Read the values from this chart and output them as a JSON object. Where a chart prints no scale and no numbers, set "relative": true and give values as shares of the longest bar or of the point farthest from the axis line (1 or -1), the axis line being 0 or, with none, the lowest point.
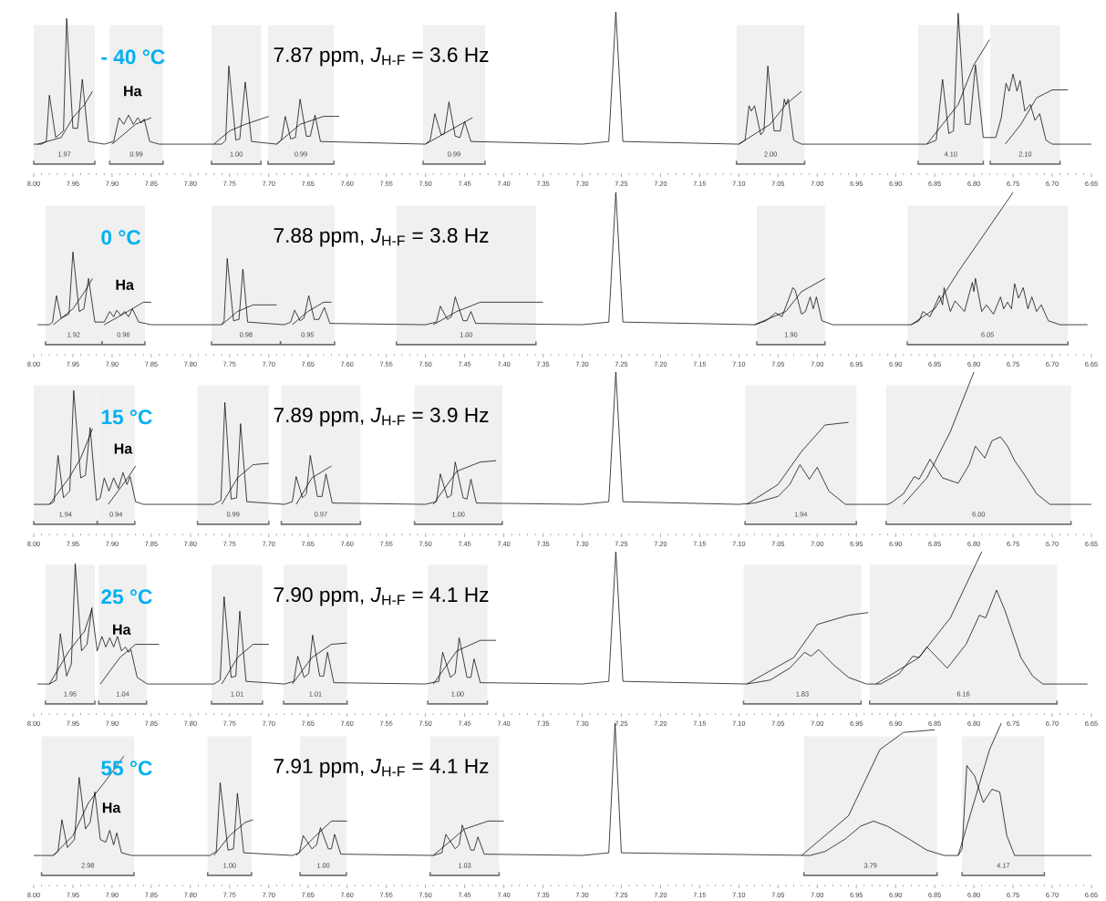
{
  "chart_data": [
    {
      "type": "line",
      "relative": true,
      "tick_labels": "x",
      "xlim": [
        8.0,
        6.65
      ],
      "xticks": [
        {
          "value": 8.0,
          "label": "8.00"
        },
        {
          "value": 7.95,
          "label": "7.95"
        },
        {
          "value": 7.9,
          "label": "7.90"
        },
        {
          "value": 7.85,
          "label": "7.85"
        },
        {
          "value": 7.8,
          "label": "7.80"
        },
        {
          "value": 7.75,
          "label": "7.75"
        },
        {
          "value": 7.7,
          "label": "7.70"
        },
        {
          "value": 7.65,
          "label": "7.65"
        },
        {
          "value": 7.6,
          "label": "7.60"
        },
        {
          "value": 7.55,
          "label": "7.55"
        },
        {
          "value": 7.5,
          "label": "7.50"
        },
        {
          "value": 7.45,
          "label": "7.45"
        },
        {
          "value": 7.4,
          "label": "7.40"
        },
        {
          "value": 7.35,
          "label": "7.35"
        },
        {
          "value": 7.3,
          "label": "7.30"
        },
        {
          "value": 7.25,
          "label": "7.25"
        },
        {
          "value": 7.2,
          "label": "7.20"
        },
        {
          "value": 7.15,
          "label": "7.15"
        },
        {
          "value": 7.1,
          "label": "7.10"
        },
        {
          "value": 7.05,
          "label": "7.05"
        },
        {
          "value": 7.0,
          "label": "7.00"
        },
        {
          "value": 6.95,
          "label": "6.95"
        },
        {
          "value": 6.9,
          "label": "6.90"
        },
        {
          "value": 6.85,
          "label": "6.85"
        },
        {
          "value": 6.8,
          "label": "6.80"
        },
        {
          "value": 6.75,
          "label": "6.75"
        },
        {
          "value": 6.7,
          "label": "6.70"
        },
        {
          "value": 6.65,
          "label": "6.65"
        }
      ],
      "annotations": [
        "- 40 °C",
        "7.87 ppm, *J*$_{H-F}$ = 3.6 Hz",
        "Ha"
      ],
      "bands": [
        {
          "axis": "x",
          "from": 8.0,
          "to": 7.922,
          "label": "1.97"
        },
        {
          "axis": "x",
          "from": 7.903,
          "to": 7.835,
          "label": "0.99"
        },
        {
          "axis": "x",
          "from": 7.773,
          "to": 7.71,
          "label": "1.00"
        },
        {
          "axis": "x",
          "from": 7.701,
          "to": 7.617,
          "label": "0.99"
        },
        {
          "axis": "x",
          "from": 7.503,
          "to": 7.424,
          "label": "0.99"
        },
        {
          "axis": "x",
          "from": 7.103,
          "to": 7.016,
          "label": "2.00"
        },
        {
          "axis": "x",
          "from": 6.871,
          "to": 6.788,
          "label": "4.10"
        },
        {
          "axis": "x",
          "from": 6.779,
          "to": 6.69,
          "label": "2.10"
        }
      ],
      "series": [
        {
          "color": "#000000",
          "x": [
            8.0,
            7.99,
            7.984,
            7.98,
            7.972,
            7.962,
            7.958,
            7.95,
            7.944,
            7.938,
            7.93,
            7.91,
            7.898,
            7.891,
            7.885,
            7.879,
            7.873,
            7.867,
            7.863,
            7.859,
            7.852,
            7.84,
            7.76,
            7.755,
            7.751,
            7.742,
            7.737,
            7.73,
            7.722,
            7.69,
            7.684,
            7.679,
            7.672,
            7.666,
            7.66,
            7.652,
            7.647,
            7.641,
            7.634,
            7.5,
            7.494,
            7.488,
            7.48,
            7.476,
            7.47,
            7.462,
            7.456,
            7.45,
            7.442,
            7.3,
            7.266,
            7.257,
            7.248,
            7.1,
            7.092,
            7.087,
            7.084,
            7.08,
            7.072,
            7.068,
            7.063,
            7.055,
            7.047,
            7.042,
            7.04,
            7.037,
            7.03,
            7.02,
            6.86,
            6.848,
            6.84,
            6.832,
            6.826,
            6.82,
            6.811,
            6.805,
            6.798,
            6.788,
            6.772,
            6.765,
            6.759,
            6.755,
            6.75,
            6.745,
            6.741,
            6.735,
            6.728,
            6.722,
            6.716,
            6.708,
            6.7,
            6.65
          ],
          "values": [
            0,
            0,
            0.02,
            0.37,
            0.05,
            0.1,
            0.95,
            0.12,
            0.12,
            0.49,
            0.02,
            0,
            0.02,
            0.2,
            0.15,
            0.22,
            0.15,
            0.2,
            0.16,
            0.19,
            0.02,
            0,
            0,
            0.03,
            0.59,
            0.03,
            0.04,
            0.47,
            0.02,
            0,
            0.03,
            0.21,
            0.04,
            0.05,
            0.34,
            0.06,
            0.06,
            0.22,
            0.02,
            0,
            0.03,
            0.23,
            0.07,
            0.08,
            0.32,
            0.06,
            0.05,
            0.17,
            0.02,
            0,
            0.02,
            1,
            0.02,
            0,
            0.03,
            0.29,
            0.25,
            0.29,
            0.07,
            0.1,
            0.59,
            0.1,
            0.1,
            0.34,
            0.3,
            0.34,
            0.03,
            0,
            0,
            0.03,
            0.49,
            0.08,
            0.1,
            0.99,
            0.15,
            0.15,
            0.6,
            0.05,
            0.05,
            0.2,
            0.46,
            0.4,
            0.53,
            0.4,
            0.48,
            0.25,
            0.3,
            0.18,
            0.23,
            0.03,
            0,
            0
          ]
        },
        {
          "color": "#000000",
          "x": [
            7.995,
            7.965,
            7.95,
            7.935,
            7.925,
            7.915,
            7.9,
            7.87,
            7.85,
            7.8,
            7.77,
            7.75,
            7.73,
            7.7,
            7.695,
            7.69,
            7.66,
            7.63,
            7.61,
            7.55,
            7.5,
            7.47,
            7.44,
            7.2,
            7.1,
            7.06,
            7.04,
            7.02,
            6.9,
            6.86,
            6.82,
            6.8,
            6.78,
            6.77,
            6.76,
            6.74,
            6.72,
            6.7,
            6.68
          ],
          "values": [
            0,
            0.05,
            0.2,
            0.3,
            0.4,
            null,
            0,
            0.15,
            0.2,
            null,
            0,
            0.1,
            0.15,
            0.21,
            null,
            0,
            0.15,
            0.21,
            0.21,
            null,
            0,
            0.1,
            0.2,
            null,
            0,
            0.15,
            0.3,
            0.4,
            null,
            0,
            0.3,
            0.6,
            0.79,
            null,
            0,
            0.15,
            0.35,
            0.41,
            0.41
          ]
        }
      ]
    },
    {
      "type": "line",
      "relative": true,
      "tick_labels": "x",
      "xlim": [
        8.0,
        6.65
      ],
      "xticks": [
        {
          "value": 8.0,
          "label": "8.00"
        },
        {
          "value": 7.95,
          "label": "7.95"
        },
        {
          "value": 7.9,
          "label": "7.90"
        },
        {
          "value": 7.85,
          "label": "7.85"
        },
        {
          "value": 7.8,
          "label": "7.80"
        },
        {
          "value": 7.75,
          "label": "7.75"
        },
        {
          "value": 7.7,
          "label": "7.70"
        },
        {
          "value": 7.65,
          "label": "7.65"
        },
        {
          "value": 7.6,
          "label": "7.60"
        },
        {
          "value": 7.55,
          "label": "7.55"
        },
        {
          "value": 7.5,
          "label": "7.50"
        },
        {
          "value": 7.45,
          "label": "7.45"
        },
        {
          "value": 7.4,
          "label": "7.40"
        },
        {
          "value": 7.35,
          "label": "7.35"
        },
        {
          "value": 7.3,
          "label": "7.30"
        },
        {
          "value": 7.25,
          "label": "7.25"
        },
        {
          "value": 7.2,
          "label": "7.20"
        },
        {
          "value": 7.15,
          "label": "7.15"
        },
        {
          "value": 7.1,
          "label": "7.10"
        },
        {
          "value": 7.05,
          "label": "7.05"
        },
        {
          "value": 7.0,
          "label": "7.00"
        },
        {
          "value": 6.95,
          "label": "6.95"
        },
        {
          "value": 6.9,
          "label": "6.90"
        },
        {
          "value": 6.85,
          "label": "6.85"
        },
        {
          "value": 6.8,
          "label": "6.80"
        },
        {
          "value": 6.75,
          "label": "6.75"
        },
        {
          "value": 6.7,
          "label": "6.70"
        },
        {
          "value": 6.65,
          "label": "6.65"
        }
      ],
      "annotations": [
        "0 °C",
        "7.88 ppm, *J*$_{H-F}$ = 3.8 Hz",
        "Ha"
      ],
      "bands": [
        {
          "axis": "x",
          "from": 7.985,
          "to": 7.913,
          "label": "1.92"
        },
        {
          "axis": "x",
          "from": 7.913,
          "to": 7.858,
          "label": "0.96"
        },
        {
          "axis": "x",
          "from": 7.773,
          "to": 7.685,
          "label": "0.98"
        },
        {
          "axis": "x",
          "from": 7.685,
          "to": 7.616,
          "label": "0.95"
        },
        {
          "axis": "x",
          "from": 7.537,
          "to": 7.359,
          "label": "1.00"
        },
        {
          "axis": "x",
          "from": 7.077,
          "to": 6.99,
          "label": "1.90"
        },
        {
          "axis": "x",
          "from": 6.885,
          "to": 6.68,
          "label": "6.05"
        }
      ],
      "series": [
        {
          "color": "#000000",
          "x": [
            7.995,
            7.98,
            7.976,
            7.971,
            7.965,
            7.955,
            7.95,
            7.942,
            7.936,
            7.93,
            7.922,
            7.91,
            7.903,
            7.898,
            7.894,
            7.889,
            7.884,
            7.879,
            7.874,
            7.866,
            7.85,
            7.76,
            7.757,
            7.753,
            7.745,
            7.738,
            7.733,
            7.727,
            7.68,
            7.672,
            7.667,
            7.66,
            7.655,
            7.649,
            7.642,
            7.636,
            7.629,
            7.622,
            7.5,
            7.486,
            7.481,
            7.472,
            7.467,
            7.462,
            7.452,
            7.447,
            7.442,
            7.436,
            7.3,
            7.266,
            7.257,
            7.248,
            7.08,
            7.065,
            7.053,
            7.045,
            7.036,
            7.031,
            7.028,
            7.02,
            7.015,
            7.009,
            7.005,
            7.001,
            6.994,
            6.98,
            6.88,
            6.87,
            6.865,
            6.856,
            6.844,
            6.84,
            6.838,
            6.83,
            6.824,
            6.812,
            6.802,
            6.8,
            6.798,
            6.79,
            6.784,
            6.775,
            6.766,
            6.762,
            6.757,
            6.752,
            6.748,
            6.743,
            6.737,
            6.731,
            6.726,
            6.72,
            6.714,
            6.705,
            6.69,
            6.655
          ],
          "values": [
            0,
            0,
            0.02,
            0.22,
            0.05,
            0.08,
            0.55,
            0.1,
            0.12,
            0.35,
            0.02,
            0.02,
            0.1,
            0.06,
            0.11,
            0.07,
            0.1,
            0.06,
            0.12,
            0.02,
            0,
            0,
            0.03,
            0.5,
            0.03,
            0.04,
            0.42,
            0.02,
            0,
            0.02,
            0.11,
            0.03,
            0.05,
            0.22,
            0.04,
            0.04,
            0.13,
            0.01,
            0,
            0.02,
            0.14,
            0.04,
            0.06,
            0.21,
            0.03,
            0.03,
            0.1,
            0.01,
            0,
            0.02,
            1,
            0.02,
            0,
            0.03,
            0.09,
            0.06,
            0.2,
            0.28,
            0.26,
            0.08,
            0.1,
            0.21,
            0.12,
            0.21,
            0.03,
            0,
            0,
            0.03,
            0.1,
            0.06,
            0.22,
            0.15,
            0.28,
            0.1,
            0.18,
            0.1,
            0.32,
            0.25,
            0.35,
            0.1,
            0.15,
            0.08,
            0.21,
            0.12,
            0.17,
            0.12,
            0.31,
            0.2,
            0.28,
            0.12,
            0.21,
            0.1,
            0.15,
            0.03,
            0,
            0
          ]
        },
        {
          "color": "#000000",
          "x": [
            7.975,
            7.95,
            7.935,
            7.925,
            7.915,
            7.91,
            7.88,
            7.86,
            7.85,
            7.8,
            7.76,
            7.74,
            7.72,
            7.69,
            7.68,
            7.67,
            7.65,
            7.63,
            7.62,
            7.55,
            7.49,
            7.46,
            7.43,
            7.35,
            7.2,
            7.08,
            7.04,
            7.02,
            6.99,
            6.95,
            6.88,
            6.85,
            6.82,
            6.75
          ],
          "values": [
            0,
            0.12,
            0.25,
            0.35,
            null,
            0,
            0.1,
            0.17,
            0.17,
            null,
            0,
            0.1,
            0.15,
            0.15,
            null,
            0,
            0.1,
            0.17,
            0.17,
            null,
            0,
            0.1,
            0.17,
            0.17,
            null,
            0,
            0.1,
            0.25,
            0.35,
            null,
            0,
            0.12,
            0.4,
            1
          ]
        }
      ]
    },
    {
      "type": "line",
      "relative": true,
      "tick_labels": "x",
      "xlim": [
        8.0,
        6.65
      ],
      "xticks": [
        {
          "value": 8.0,
          "label": "8.00"
        },
        {
          "value": 7.95,
          "label": "7.95"
        },
        {
          "value": 7.9,
          "label": "7.90"
        },
        {
          "value": 7.85,
          "label": "7.85"
        },
        {
          "value": 7.8,
          "label": "7.80"
        },
        {
          "value": 7.75,
          "label": "7.75"
        },
        {
          "value": 7.7,
          "label": "7.70"
        },
        {
          "value": 7.65,
          "label": "7.65"
        },
        {
          "value": 7.6,
          "label": "7.60"
        },
        {
          "value": 7.55,
          "label": "7.55"
        },
        {
          "value": 7.5,
          "label": "7.50"
        },
        {
          "value": 7.45,
          "label": "7.45"
        },
        {
          "value": 7.4,
          "label": "7.40"
        },
        {
          "value": 7.35,
          "label": "7.35"
        },
        {
          "value": 7.3,
          "label": "7.30"
        },
        {
          "value": 7.25,
          "label": "7.25"
        },
        {
          "value": 7.2,
          "label": "7.20"
        },
        {
          "value": 7.15,
          "label": "7.15"
        },
        {
          "value": 7.1,
          "label": "7.10"
        },
        {
          "value": 7.05,
          "label": "7.05"
        },
        {
          "value": 7.0,
          "label": "7.00"
        },
        {
          "value": 6.95,
          "label": "6.95"
        },
        {
          "value": 6.9,
          "label": "6.90"
        },
        {
          "value": 6.85,
          "label": "6.85"
        },
        {
          "value": 6.8,
          "label": "6.80"
        },
        {
          "value": 6.75,
          "label": "6.75"
        },
        {
          "value": 6.7,
          "label": "6.70"
        },
        {
          "value": 6.65,
          "label": "6.65"
        }
      ],
      "annotations": [
        "15 °C",
        "7.89 ppm, *J*$_{H-F}$ = 3.9 Hz",
        "Ha"
      ],
      "bands": [
        {
          "axis": "x",
          "from": 8.0,
          "to": 7.919,
          "label": "1.94"
        },
        {
          "axis": "x",
          "from": 7.919,
          "to": 7.871,
          "label": "0.94"
        },
        {
          "axis": "x",
          "from": 7.791,
          "to": 7.7,
          "label": "0.99"
        },
        {
          "axis": "x",
          "from": 7.684,
          "to": 7.583,
          "label": "0.97"
        },
        {
          "axis": "x",
          "from": 7.514,
          "to": 7.402,
          "label": "1.00"
        },
        {
          "axis": "x",
          "from": 7.092,
          "to": 6.95,
          "label": "1.94"
        },
        {
          "axis": "x",
          "from": 6.912,
          "to": 6.676,
          "label": "6.00"
        }
      ],
      "series": [
        {
          "color": "#000000",
          "x": [
            8.0,
            7.98,
            7.974,
            7.969,
            7.962,
            7.954,
            7.949,
            7.94,
            7.934,
            7.928,
            7.92,
            7.915,
            7.91,
            7.904,
            7.898,
            7.892,
            7.886,
            7.881,
            7.877,
            7.87,
            7.86,
            7.77,
            7.761,
            7.756,
            7.748,
            7.741,
            7.736,
            7.728,
            7.68,
            7.67,
            7.665,
            7.657,
            7.652,
            7.647,
            7.638,
            7.632,
            7.627,
            7.619,
            7.5,
            7.486,
            7.481,
            7.472,
            7.467,
            7.462,
            7.452,
            7.447,
            7.442,
            7.435,
            7.3,
            7.266,
            7.257,
            7.248,
            7.1,
            7.08,
            7.05,
            7.035,
            7.022,
            7.01,
            7.0,
            6.985,
            6.964,
            6.91,
            6.906,
            6.89,
            6.876,
            6.87,
            6.856,
            6.84,
            6.82,
            6.806,
            6.798,
            6.786,
            6.777,
            6.766,
            6.757,
            6.748,
            6.735,
            6.72,
            6.703,
            6.65
          ],
          "values": [
            0,
            0,
            0.02,
            0.37,
            0.05,
            0.1,
            0.86,
            0.2,
            0.22,
            0.58,
            0.03,
            0.05,
            0.2,
            0.1,
            0.2,
            0.12,
            0.24,
            0.15,
            0.21,
            0.02,
            0,
            0,
            0.03,
            0.77,
            0.04,
            0.05,
            0.61,
            0.02,
            0,
            0.02,
            0.21,
            0.05,
            0.08,
            0.37,
            0.06,
            0.06,
            0.23,
            0.01,
            0,
            0.02,
            0.23,
            0.05,
            0.07,
            0.32,
            0.05,
            0.04,
            0.19,
            0.01,
            0,
            0.02,
            1,
            0.02,
            0,
            0.01,
            0.06,
            0.15,
            0.3,
            0.19,
            0.28,
            0.1,
            0,
            0,
            0.01,
            0.08,
            0.21,
            0.19,
            0.34,
            0.2,
            0.16,
            0.3,
            0.44,
            0.35,
            0.48,
            0.51,
            0.44,
            0.33,
            0.22,
            0.08,
            0,
            0
          ]
        },
        {
          "color": "#000000",
          "x": [
            7.98,
            7.955,
            7.94,
            7.925,
            7.915,
            7.905,
            7.88,
            7.87,
            7.8,
            7.76,
            7.74,
            7.72,
            7.7,
            7.68,
            7.665,
            7.645,
            7.62,
            7.55,
            7.49,
            7.46,
            7.43,
            7.41,
            7.2,
            7.09,
            7.05,
            7.02,
            6.99,
            6.96,
            6.93,
            6.89,
            6.86,
            6.83,
            6.8
          ],
          "values": [
            0,
            0.2,
            0.35,
            0.57,
            null,
            0,
            0.2,
            0.29,
            null,
            0,
            0.2,
            0.3,
            0.31,
            null,
            0,
            0.2,
            0.29,
            null,
            0,
            0.25,
            0.32,
            0.33,
            null,
            0,
            0.15,
            0.4,
            0.6,
            0.62,
            null,
            0,
            0.2,
            0.55,
            1
          ]
        }
      ]
    },
    {
      "type": "line",
      "relative": true,
      "tick_labels": "x",
      "xlim": [
        8.0,
        6.65
      ],
      "xticks": [
        {
          "value": 8.0,
          "label": "8.00"
        },
        {
          "value": 7.95,
          "label": "7.95"
        },
        {
          "value": 7.9,
          "label": "7.90"
        },
        {
          "value": 7.85,
          "label": "7.85"
        },
        {
          "value": 7.8,
          "label": "7.80"
        },
        {
          "value": 7.75,
          "label": "7.75"
        },
        {
          "value": 7.7,
          "label": "7.70"
        },
        {
          "value": 7.65,
          "label": "7.65"
        },
        {
          "value": 7.6,
          "label": "7.60"
        },
        {
          "value": 7.55,
          "label": "7.55"
        },
        {
          "value": 7.5,
          "label": "7.50"
        },
        {
          "value": 7.45,
          "label": "7.45"
        },
        {
          "value": 7.4,
          "label": "7.40"
        },
        {
          "value": 7.35,
          "label": "7.35"
        },
        {
          "value": 7.3,
          "label": "7.30"
        },
        {
          "value": 7.25,
          "label": "7.25"
        },
        {
          "value": 7.2,
          "label": "7.20"
        },
        {
          "value": 7.15,
          "label": "7.15"
        },
        {
          "value": 7.1,
          "label": "7.10"
        },
        {
          "value": 7.05,
          "label": "7.05"
        },
        {
          "value": 7.0,
          "label": "7.00"
        },
        {
          "value": 6.95,
          "label": "6.95"
        },
        {
          "value": 6.9,
          "label": "6.90"
        },
        {
          "value": 6.85,
          "label": "6.85"
        },
        {
          "value": 6.8,
          "label": "6.80"
        },
        {
          "value": 6.75,
          "label": "6.75"
        },
        {
          "value": 6.7,
          "label": "6.70"
        },
        {
          "value": 6.65,
          "label": "6.65"
        }
      ],
      "annotations": [
        "25 °C",
        "7.90 ppm, *J*$_{H-F}$ = 4.1 Hz",
        "Ha"
      ],
      "bands": [
        {
          "axis": "x",
          "from": 7.985,
          "to": 7.922,
          "label": "1.95"
        },
        {
          "axis": "x",
          "from": 7.917,
          "to": 7.856,
          "label": "1.04"
        },
        {
          "axis": "x",
          "from": 7.773,
          "to": 7.708,
          "label": "1.01"
        },
        {
          "axis": "x",
          "from": 7.681,
          "to": 7.6,
          "label": "1.01"
        },
        {
          "axis": "x",
          "from": 7.497,
          "to": 7.421,
          "label": "1.00"
        },
        {
          "axis": "x",
          "from": 7.094,
          "to": 6.944,
          "label": "1.83"
        },
        {
          "axis": "x",
          "from": 6.933,
          "to": 6.694,
          "label": "6.16"
        }
      ],
      "series": [
        {
          "color": "#000000",
          "x": [
            7.995,
            7.98,
            7.971,
            7.966,
            7.958,
            7.952,
            7.947,
            7.939,
            7.932,
            7.926,
            7.919,
            7.913,
            7.908,
            7.903,
            7.898,
            7.893,
            7.888,
            7.883,
            7.879,
            7.876,
            7.868,
            7.855,
            7.77,
            7.762,
            7.757,
            7.748,
            7.742,
            7.737,
            7.729,
            7.68,
            7.668,
            7.663,
            7.655,
            7.649,
            7.644,
            7.635,
            7.63,
            7.625,
            7.617,
            7.5,
            7.483,
            7.478,
            7.468,
            7.462,
            7.457,
            7.447,
            7.442,
            7.438,
            7.43,
            7.3,
            7.266,
            7.257,
            7.248,
            7.09,
            7.06,
            7.035,
            7.016,
            7.008,
            6.998,
            6.98,
            6.96,
            6.937,
            6.919,
            6.895,
            6.878,
            6.87,
            6.86,
            6.834,
            6.81,
            6.793,
            6.785,
            6.771,
            6.76,
            6.74,
            6.725,
            6.712,
            6.655
          ],
          "values": [
            0,
            0,
            0.03,
            0.38,
            0.06,
            0.15,
            0.91,
            0.25,
            0.3,
            0.57,
            0.25,
            0.36,
            0.28,
            0.35,
            0.28,
            0.36,
            0.25,
            0.28,
            0.24,
            0.26,
            0.05,
            0,
            0,
            0.03,
            0.66,
            0.05,
            0.06,
            0.55,
            0.02,
            0,
            0.02,
            0.21,
            0.05,
            0.08,
            0.37,
            0.06,
            0.06,
            0.24,
            0.01,
            0,
            0.02,
            0.24,
            0.05,
            0.08,
            0.35,
            0.05,
            0.05,
            0.19,
            0.01,
            0,
            0.02,
            1,
            0.02,
            0,
            0.03,
            0.12,
            0.24,
            0.21,
            0.26,
            0.15,
            0.05,
            0,
            0,
            0.08,
            0.21,
            0.2,
            0.28,
            0.12,
            0.3,
            0.52,
            0.5,
            0.71,
            0.55,
            0.2,
            0.06,
            0,
            0
          ]
        },
        {
          "color": "#000000",
          "x": [
            7.98,
            7.955,
            7.935,
            7.925,
            7.92,
            7.915,
            7.89,
            7.87,
            7.84,
            7.8,
            7.76,
            7.74,
            7.72,
            7.7,
            7.68,
            7.67,
            7.645,
            7.62,
            7.6,
            7.55,
            7.49,
            7.46,
            7.43,
            7.41,
            7.2,
            7.09,
            7.03,
            7.0,
            6.96,
            6.935,
            6.93,
            6.925,
            6.87,
            6.83,
            6.79
          ],
          "values": [
            0,
            0.25,
            0.4,
            0.58,
            null,
            0,
            0.2,
            0.3,
            0.3,
            null,
            0,
            0.2,
            0.3,
            0.3,
            null,
            0,
            0.2,
            0.3,
            0.31,
            null,
            0,
            0.25,
            0.33,
            0.33,
            null,
            0,
            0.2,
            0.45,
            0.52,
            0.54,
            null,
            0,
            0.2,
            0.5,
            1
          ]
        }
      ]
    },
    {
      "type": "line",
      "relative": true,
      "tick_labels": "x",
      "xlim": [
        8.0,
        6.65
      ],
      "xticks": [
        {
          "value": 8.0,
          "label": "8.00"
        },
        {
          "value": 7.95,
          "label": "7.95"
        },
        {
          "value": 7.9,
          "label": "7.90"
        },
        {
          "value": 7.85,
          "label": "7.85"
        },
        {
          "value": 7.8,
          "label": "7.80"
        },
        {
          "value": 7.75,
          "label": "7.75"
        },
        {
          "value": 7.7,
          "label": "7.70"
        },
        {
          "value": 7.65,
          "label": "7.65"
        },
        {
          "value": 7.6,
          "label": "7.60"
        },
        {
          "value": 7.55,
          "label": "7.55"
        },
        {
          "value": 7.5,
          "label": "7.50"
        },
        {
          "value": 7.45,
          "label": "7.45"
        },
        {
          "value": 7.4,
          "label": "7.40"
        },
        {
          "value": 7.35,
          "label": "7.35"
        },
        {
          "value": 7.3,
          "label": "7.30"
        },
        {
          "value": 7.25,
          "label": "7.25"
        },
        {
          "value": 7.2,
          "label": "7.20"
        },
        {
          "value": 7.15,
          "label": "7.15"
        },
        {
          "value": 7.1,
          "label": "7.10"
        },
        {
          "value": 7.05,
          "label": "7.05"
        },
        {
          "value": 7.0,
          "label": "7.00"
        },
        {
          "value": 6.95,
          "label": "6.95"
        },
        {
          "value": 6.9,
          "label": "6.90"
        },
        {
          "value": 6.85,
          "label": "6.85"
        },
        {
          "value": 6.8,
          "label": "6.80"
        },
        {
          "value": 6.75,
          "label": "6.75"
        },
        {
          "value": 6.7,
          "label": "6.70"
        },
        {
          "value": 6.65,
          "label": "6.65"
        }
      ],
      "annotations": [
        "55 °C",
        "7.91 ppm, *J*$_{H-F}$ = 4.1 Hz",
        "Ha"
      ],
      "bands": [
        {
          "axis": "x",
          "from": 7.99,
          "to": 7.872,
          "label": "2.98"
        },
        {
          "axis": "x",
          "from": 7.778,
          "to": 7.722,
          "label": "1.00"
        },
        {
          "axis": "x",
          "from": 7.66,
          "to": 7.601,
          "label": "1.00"
        },
        {
          "axis": "x",
          "from": 7.494,
          "to": 7.406,
          "label": "1.03"
        },
        {
          "axis": "x",
          "from": 7.017,
          "to": 6.847,
          "label": "3.79"
        },
        {
          "axis": "x",
          "from": 6.815,
          "to": 6.71,
          "label": "4.17"
        }
      ],
      "series": [
        {
          "color": "#000000",
          "x": [
            8.0,
            7.975,
            7.969,
            7.964,
            7.957,
            7.948,
            7.942,
            7.934,
            7.928,
            7.922,
            7.915,
            7.908,
            7.903,
            7.898,
            7.894,
            7.888,
            7.875,
            7.775,
            7.767,
            7.762,
            7.752,
            7.745,
            7.74,
            7.732,
            7.67,
            7.661,
            7.656,
            7.645,
            7.639,
            7.634,
            7.624,
            7.62,
            7.616,
            7.608,
            7.49,
            7.479,
            7.474,
            7.462,
            7.457,
            7.453,
            7.442,
            7.438,
            7.433,
            7.425,
            7.3,
            7.266,
            7.258,
            7.25,
            7.009,
            6.99,
            6.964,
            6.945,
            6.928,
            6.91,
            6.883,
            6.86,
            6.838,
            6.82,
            6.815,
            6.809,
            6.799,
            6.788,
            6.777,
            6.767,
            6.758,
            6.748,
            6.65
          ],
          "values": [
            0,
            0,
            0.03,
            0.27,
            0.06,
            0.12,
            0.59,
            0.2,
            0.25,
            0.48,
            0.12,
            0.1,
            0.19,
            0.08,
            0.17,
            0.02,
            0,
            0,
            0.03,
            0.55,
            0.04,
            0.05,
            0.47,
            0.02,
            0,
            0.02,
            0.15,
            0.05,
            0.08,
            0.21,
            0.05,
            0.05,
            0.16,
            0.01,
            0,
            0.02,
            0.16,
            0.05,
            0.08,
            0.23,
            0.04,
            0.04,
            0.14,
            0.01,
            0,
            0.02,
            1,
            0.02,
            0,
            0.03,
            0.125,
            0.22,
            0.26,
            0.22,
            0.125,
            0.04,
            0,
            0,
            0.05,
            0.68,
            0.6,
            0.4,
            0.5,
            0.48,
            0.15,
            0,
            0
          ]
        },
        {
          "color": "#000000",
          "x": [
            7.975,
            7.95,
            7.93,
            7.91,
            7.885,
            7.83,
            7.77,
            7.75,
            7.73,
            7.72,
            7.69,
            7.665,
            7.64,
            7.62,
            7.6,
            7.55,
            7.49,
            7.45,
            7.42,
            7.4,
            7.2,
            7.02,
            6.96,
            6.92,
            6.89,
            6.85,
            6.835,
            6.82,
            6.8,
            6.78,
            6.765
          ],
          "values": [
            0,
            0.15,
            0.4,
            0.55,
            0.75,
            null,
            0,
            0.15,
            0.25,
            0.27,
            null,
            0,
            0.15,
            0.26,
            0.26,
            null,
            0,
            0.2,
            0.26,
            0.26,
            null,
            0,
            0.3,
            0.8,
            0.93,
            0.95,
            null,
            0,
            0.4,
            0.8,
            1
          ]
        }
      ]
    }
  ]
}
